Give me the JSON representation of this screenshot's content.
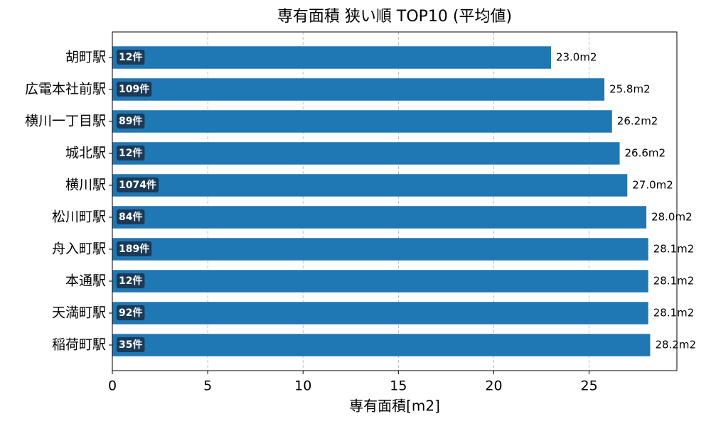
{
  "chart_data": {
    "type": "barh",
    "title": "専有面積 狭い順 TOP10 (平均値)",
    "x_label": "専有面積[m2]",
    "categories": [
      "胡町駅",
      "広電本社前駅",
      "横川一丁目駅",
      "城北駅",
      "横川駅",
      "松川町駅",
      "舟入町駅",
      "本通駅",
      "天満町駅",
      "稲荷町駅"
    ],
    "values": [
      23.0,
      25.8,
      26.2,
      26.6,
      27.0,
      28.0,
      28.1,
      28.1,
      28.1,
      28.2
    ],
    "value_labels": [
      "23.0m2",
      "25.8m2",
      "26.2m2",
      "26.6m2",
      "27.0m2",
      "28.0m2",
      "28.1m2",
      "28.1m2",
      "28.1m2",
      "28.2m2"
    ],
    "count_labels": [
      "12件",
      "109件",
      "89件",
      "12件",
      "1074件",
      "84件",
      "189件",
      "12件",
      "92件",
      "35件"
    ],
    "color": "#1f77b4",
    "xlim": [
      0,
      29.6
    ],
    "xticks": [
      0,
      5,
      10,
      15,
      20,
      25
    ],
    "grid": true
  }
}
